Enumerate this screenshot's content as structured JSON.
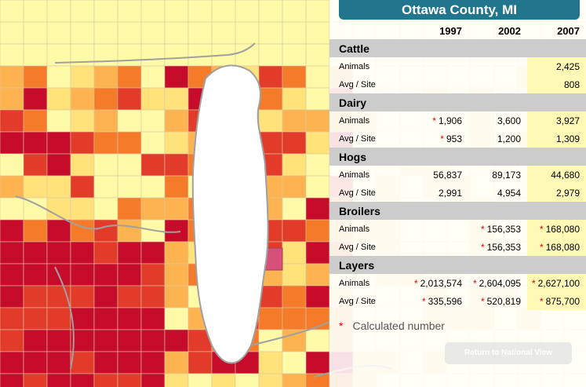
{
  "panel": {
    "title": "Ottawa County, MI",
    "years": [
      "1997",
      "2002",
      "2007"
    ],
    "sections": [
      {
        "name": "Cattle",
        "rows": [
          {
            "label": "Animals",
            "values": [
              "",
              "",
              "2,425"
            ],
            "calc": [
              false,
              false,
              false
            ]
          },
          {
            "label": "Avg / Site",
            "values": [
              "",
              "",
              "808"
            ],
            "calc": [
              false,
              false,
              false
            ]
          }
        ]
      },
      {
        "name": "Dairy",
        "rows": [
          {
            "label": "Animals",
            "values": [
              "1,906",
              "3,600",
              "3,927"
            ],
            "calc": [
              true,
              false,
              false
            ]
          },
          {
            "label": "Avg / Site",
            "values": [
              "953",
              "1,200",
              "1,309"
            ],
            "calc": [
              true,
              false,
              false
            ]
          }
        ]
      },
      {
        "name": "Hogs",
        "rows": [
          {
            "label": "Animals",
            "values": [
              "56,837",
              "89,173",
              "44,680"
            ],
            "calc": [
              false,
              false,
              false
            ]
          },
          {
            "label": "Avg / Site",
            "values": [
              "2,991",
              "4,954",
              "2,979"
            ],
            "calc": [
              false,
              false,
              false
            ]
          }
        ]
      },
      {
        "name": "Broilers",
        "rows": [
          {
            "label": "Animals",
            "values": [
              "",
              "156,353",
              "168,080"
            ],
            "calc": [
              false,
              true,
              true
            ]
          },
          {
            "label": "Avg / Site",
            "values": [
              "",
              "156,353",
              "168,080"
            ],
            "calc": [
              false,
              true,
              true
            ]
          }
        ]
      },
      {
        "name": "Layers",
        "rows": [
          {
            "label": "Animals",
            "values": [
              "2,013,574",
              "2,604,095",
              "2,627,100"
            ],
            "calc": [
              true,
              true,
              true
            ]
          },
          {
            "label": "Avg / Site",
            "values": [
              "335,596",
              "520,819",
              "875,700"
            ],
            "calc": [
              true,
              true,
              true
            ]
          }
        ]
      }
    ]
  },
  "note": {
    "marker": "*",
    "text": "Calculated number"
  },
  "return_button": {
    "label": "Return to National View"
  },
  "colors": {
    "header": "#21758d",
    "lake": "#ffffff",
    "state_border": "#a0a0a0",
    "choropleth": [
      "#fffaa8",
      "#ffe27a",
      "#fdb450",
      "#f57a2a",
      "#e33b2a",
      "#c70b2a",
      "#d8507a"
    ],
    "highlight_col": "#fff9b6",
    "calc_marker": "#e00000"
  }
}
